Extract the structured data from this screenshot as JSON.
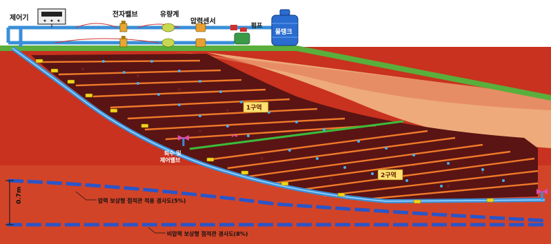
{
  "labels": {
    "controller": "제어기",
    "solenoid_valve": "전자밸브",
    "flow_meter": "유량계",
    "pressure_sensor": "압력센서",
    "pump": "펌프",
    "water_tank": "물탱크",
    "zone1": "1구역",
    "zone2": "2구역",
    "drain_valve_line1": "퇴수 및",
    "drain_valve_line2": "제어밸브",
    "depth": "0.7m",
    "pipe_upper": "압력 보상형 점적관 적용 경사도(5%)",
    "pipe_lower": "비압력 보상형 점적관 경사도(8%)"
  },
  "colors": {
    "pipe_blue": "#3a8fd8",
    "dark_blue": "#2a55c8",
    "orange_line": "#f07a2a",
    "green_line": "#3cbc3c",
    "soil_red": "#c8321e",
    "dark_soil": "#5a1414",
    "zone_label_bg": "#ffe070",
    "grass": "#5aae3c",
    "valve_pink": "#e04ab0"
  }
}
